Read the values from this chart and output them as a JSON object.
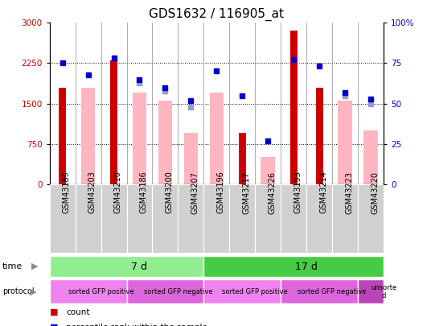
{
  "title": "GDS1632 / 116905_at",
  "samples": [
    "GSM43189",
    "GSM43203",
    "GSM43210",
    "GSM43186",
    "GSM43200",
    "GSM43207",
    "GSM43196",
    "GSM43217",
    "GSM43226",
    "GSM43193",
    "GSM43214",
    "GSM43223",
    "GSM43220"
  ],
  "count_values": [
    1800,
    null,
    2300,
    null,
    null,
    null,
    null,
    950,
    null,
    2850,
    1800,
    null,
    null
  ],
  "pink_bar_values": [
    null,
    1800,
    null,
    1700,
    1550,
    950,
    1700,
    null,
    500,
    null,
    null,
    1550,
    1000
  ],
  "blue_square_values": [
    75,
    68,
    78,
    65,
    60,
    52,
    70,
    55,
    27,
    77,
    73,
    57,
    53
  ],
  "light_blue_square_values": [
    null,
    null,
    null,
    63,
    58,
    48,
    null,
    null,
    null,
    null,
    null,
    55,
    50
  ],
  "ylim_left": [
    0,
    3000
  ],
  "ylim_right": [
    0,
    100
  ],
  "yticks_left": [
    0,
    750,
    1500,
    2250,
    3000
  ],
  "yticks_right": [
    0,
    25,
    50,
    75,
    100
  ],
  "time_groups": [
    {
      "label": "7 d",
      "start": 0,
      "end": 6,
      "color": "#90ee90"
    },
    {
      "label": "17 d",
      "start": 6,
      "end": 13,
      "color": "#44cc44"
    }
  ],
  "protocol_groups": [
    {
      "label": "sorted GFP positive",
      "start": 0,
      "end": 3,
      "color": "#ee82ee"
    },
    {
      "label": "sorted GFP negative",
      "start": 3,
      "end": 6,
      "color": "#dd66dd"
    },
    {
      "label": "sorted GFP positive",
      "start": 6,
      "end": 9,
      "color": "#ee82ee"
    },
    {
      "label": "sorted GFP negative",
      "start": 9,
      "end": 12,
      "color": "#dd66dd"
    },
    {
      "label": "unsorte\nd",
      "start": 12,
      "end": 13,
      "color": "#bb44bb"
    }
  ],
  "count_color": "#cc0000",
  "pink_color": "#ffb6c1",
  "blue_color": "#0000cc",
  "light_blue_color": "#9999cc",
  "bg_color": "#ffffff",
  "label_bg_color": "#d0d0d0",
  "title_fontsize": 11,
  "label_fontsize": 7,
  "tick_fontsize": 7.5
}
